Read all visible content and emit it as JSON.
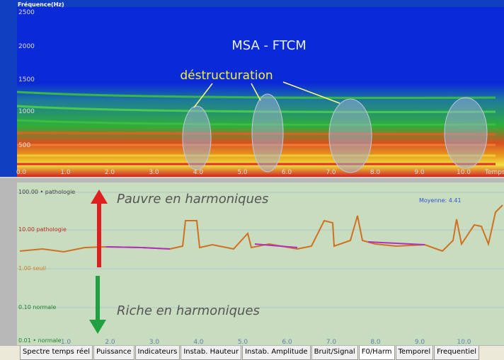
{
  "top_panel": {
    "axis_title": "Fréquence(Hz)",
    "y_labels": [
      "2500",
      "2000",
      "1500",
      "1000",
      "500"
    ],
    "x_labels": [
      "0.0",
      "1.0",
      "2.0",
      "3.0",
      "4.0",
      "5.0",
      "6.0",
      "7.0",
      "8.0",
      "9.0",
      "10.0"
    ],
    "x_axis_title": "Temps",
    "title": "MSA - FTCM",
    "annotation": "déstructuration"
  },
  "bottom_panel": {
    "y_labels": [
      "100.00 • pathologie",
      "10.00 pathologie",
      "1.00 seuil",
      "0.10 normale",
      "0.01 • normale"
    ],
    "x_labels": [
      "1.0",
      "2.0",
      "3.0",
      "4.0",
      "5.0",
      "6.0",
      "7.0",
      "8.0",
      "9.0",
      "10.0"
    ],
    "mean_label": "Moyenne: 4.41",
    "annotation_top": "Pauvre en harmoniques",
    "annotation_bottom": "Riche en harmoniques"
  },
  "tabs": [
    "Spectre temps réel",
    "Puissance",
    "Indicateurs",
    "Instab. Hauteur",
    "Instab. Amplitude",
    "Bruit/Signal",
    "F0/Harm",
    "Temporel",
    "Frequentiel"
  ],
  "selected_tab": 6
}
